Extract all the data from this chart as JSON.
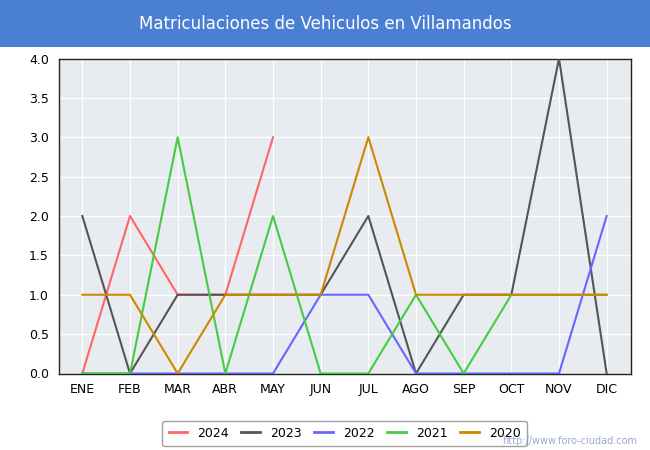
{
  "title": "Matriculaciones de Vehiculos en Villamandos",
  "months": [
    "ENE",
    "FEB",
    "MAR",
    "ABR",
    "MAY",
    "JUN",
    "JUL",
    "AGO",
    "SEP",
    "OCT",
    "NOV",
    "DIC"
  ],
  "series_order": [
    "2024",
    "2023",
    "2022",
    "2021",
    "2020"
  ],
  "series": {
    "2024": [
      0,
      2,
      1,
      1,
      3,
      null,
      null,
      null,
      null,
      null,
      null,
      null
    ],
    "2023": [
      2,
      0,
      1,
      1,
      1,
      1,
      2,
      0,
      1,
      1,
      4,
      0
    ],
    "2022": [
      0,
      0,
      0,
      0,
      0,
      1,
      1,
      0,
      0,
      0,
      0,
      2
    ],
    "2021": [
      0,
      0,
      3,
      0,
      2,
      0,
      0,
      1,
      0,
      1,
      1,
      1
    ],
    "2020": [
      1,
      1,
      0,
      1,
      1,
      1,
      3,
      1,
      1,
      1,
      1,
      1
    ]
  },
  "colors": {
    "2024": "#ff6666",
    "2023": "#555555",
    "2022": "#6666ff",
    "2021": "#44cc44",
    "2020": "#cc8800"
  },
  "ylim": [
    0,
    4.0
  ],
  "yticks": [
    0.0,
    0.5,
    1.0,
    1.5,
    2.0,
    2.5,
    3.0,
    3.5,
    4.0
  ],
  "title_color": "#ffffff",
  "title_bg_color": "#4a7fd4",
  "plot_bg_color": "#e8ecf0",
  "grid_color": "#ffffff",
  "fig_bg_color": "#ffffff",
  "watermark": "http://www.foro-ciudad.com",
  "border_color": "#222222",
  "linewidth": 1.5,
  "title_fontsize": 12,
  "tick_fontsize": 9,
  "legend_fontsize": 9
}
